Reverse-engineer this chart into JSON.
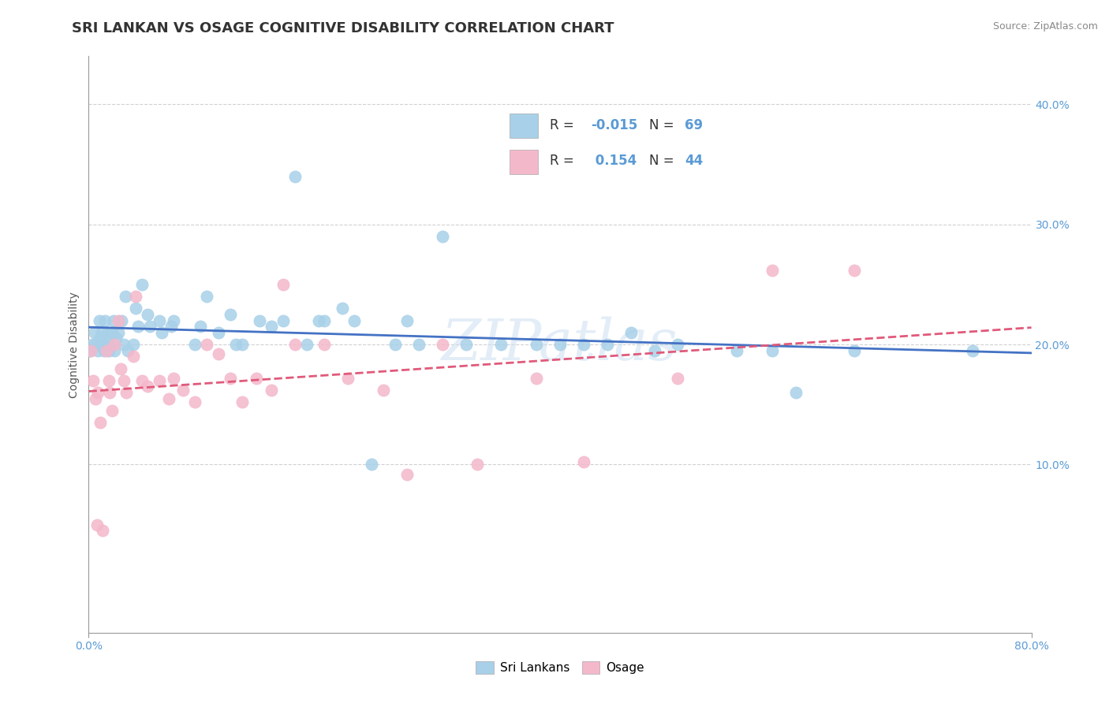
{
  "title": "SRI LANKAN VS OSAGE COGNITIVE DISABILITY CORRELATION CHART",
  "source": "Source: ZipAtlas.com",
  "ylabel": "Cognitive Disability",
  "legend_labels": [
    "Sri Lankans",
    "Osage"
  ],
  "r_sri": -0.015,
  "n_sri": 69,
  "r_osage": 0.154,
  "n_osage": 44,
  "sri_color": "#a8d0e8",
  "osage_color": "#f4b8cb",
  "sri_line_color": "#4472c4",
  "osage_line_color": "#e05a7a",
  "background_color": "#ffffff",
  "grid_color": "#cccccc",
  "xlim": [
    0.0,
    0.8
  ],
  "ylim": [
    -0.04,
    0.44
  ],
  "yticks": [
    0.1,
    0.2,
    0.3,
    0.4
  ],
  "ytick_labels": [
    "10.0%",
    "20.0%",
    "30.0%",
    "40.0%"
  ],
  "sri_x": [
    0.001,
    0.003,
    0.005,
    0.006,
    0.008,
    0.009,
    0.01,
    0.011,
    0.012,
    0.013,
    0.014,
    0.015,
    0.016,
    0.017,
    0.018,
    0.02,
    0.021,
    0.022,
    0.023,
    0.025,
    0.028,
    0.03,
    0.031,
    0.033,
    0.038,
    0.04,
    0.042,
    0.045,
    0.05,
    0.052,
    0.06,
    0.062,
    0.07,
    0.072,
    0.09,
    0.095,
    0.1,
    0.11,
    0.12,
    0.125,
    0.13,
    0.145,
    0.155,
    0.165,
    0.175,
    0.185,
    0.195,
    0.2,
    0.215,
    0.225,
    0.24,
    0.26,
    0.27,
    0.28,
    0.3,
    0.32,
    0.35,
    0.38,
    0.4,
    0.42,
    0.44,
    0.46,
    0.48,
    0.5,
    0.55,
    0.58,
    0.6,
    0.65,
    0.75
  ],
  "sri_y": [
    0.195,
    0.2,
    0.21,
    0.2,
    0.195,
    0.22,
    0.205,
    0.21,
    0.2,
    0.195,
    0.22,
    0.2,
    0.21,
    0.195,
    0.2,
    0.21,
    0.22,
    0.195,
    0.205,
    0.21,
    0.22,
    0.2,
    0.24,
    0.195,
    0.2,
    0.23,
    0.215,
    0.25,
    0.225,
    0.215,
    0.22,
    0.21,
    0.215,
    0.22,
    0.2,
    0.215,
    0.24,
    0.21,
    0.225,
    0.2,
    0.2,
    0.22,
    0.215,
    0.22,
    0.34,
    0.2,
    0.22,
    0.22,
    0.23,
    0.22,
    0.1,
    0.2,
    0.22,
    0.2,
    0.29,
    0.2,
    0.2,
    0.2,
    0.2,
    0.2,
    0.2,
    0.21,
    0.195,
    0.2,
    0.195,
    0.195,
    0.16,
    0.195,
    0.195
  ],
  "osage_x": [
    0.002,
    0.004,
    0.006,
    0.007,
    0.008,
    0.01,
    0.012,
    0.015,
    0.017,
    0.018,
    0.02,
    0.022,
    0.025,
    0.027,
    0.03,
    0.032,
    0.038,
    0.04,
    0.045,
    0.05,
    0.06,
    0.068,
    0.072,
    0.08,
    0.09,
    0.1,
    0.11,
    0.12,
    0.13,
    0.142,
    0.155,
    0.165,
    0.175,
    0.2,
    0.22,
    0.25,
    0.27,
    0.3,
    0.33,
    0.38,
    0.42,
    0.5,
    0.58,
    0.65
  ],
  "osage_y": [
    0.195,
    0.17,
    0.155,
    0.05,
    0.16,
    0.135,
    0.045,
    0.195,
    0.17,
    0.16,
    0.145,
    0.2,
    0.22,
    0.18,
    0.17,
    0.16,
    0.19,
    0.24,
    0.17,
    0.165,
    0.17,
    0.155,
    0.172,
    0.162,
    0.152,
    0.2,
    0.192,
    0.172,
    0.152,
    0.172,
    0.162,
    0.25,
    0.2,
    0.2,
    0.172,
    0.162,
    0.092,
    0.2,
    0.1,
    0.172,
    0.102,
    0.172,
    0.262,
    0.262
  ],
  "watermark_text": "ZIPatlas",
  "watermark_color": "#c8ddf0",
  "watermark_alpha": 0.5,
  "title_fontsize": 13,
  "axis_label_fontsize": 10,
  "tick_fontsize": 10,
  "legend_fontsize": 11,
  "source_fontsize": 9,
  "tick_color": "#5b9bd5"
}
